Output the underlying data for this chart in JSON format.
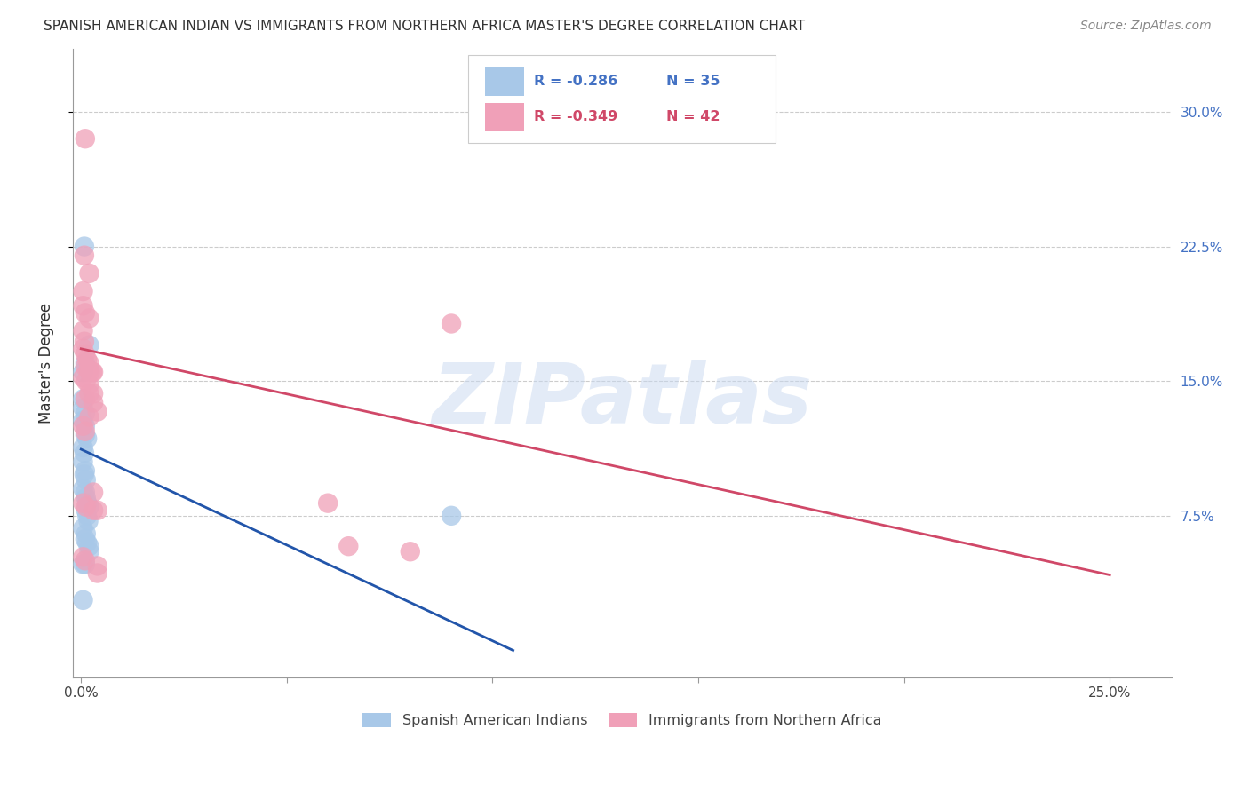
{
  "title": "SPANISH AMERICAN INDIAN VS IMMIGRANTS FROM NORTHERN AFRICA MASTER'S DEGREE CORRELATION CHART",
  "source": "Source: ZipAtlas.com",
  "ylabel": "Master's Degree",
  "legend_blue_r": "R = -0.286",
  "legend_blue_n": "N = 35",
  "legend_pink_r": "R = -0.349",
  "legend_pink_n": "N = 42",
  "legend1_label": "Spanish American Indians",
  "legend2_label": "Immigrants from Northern Africa",
  "watermark": "ZIPatlas",
  "blue_color": "#a8c8e8",
  "blue_line_color": "#2255aa",
  "pink_color": "#f0a0b8",
  "pink_line_color": "#d04868",
  "blue_scatter": [
    [
      0.0008,
      0.225
    ],
    [
      0.002,
      0.17
    ],
    [
      0.001,
      0.16
    ],
    [
      0.0005,
      0.155
    ],
    [
      0.0005,
      0.14
    ],
    [
      0.0005,
      0.135
    ],
    [
      0.001,
      0.132
    ],
    [
      0.0005,
      0.128
    ],
    [
      0.001,
      0.125
    ],
    [
      0.001,
      0.12
    ],
    [
      0.0015,
      0.118
    ],
    [
      0.0005,
      0.113
    ],
    [
      0.0008,
      0.11
    ],
    [
      0.0005,
      0.105
    ],
    [
      0.001,
      0.1
    ],
    [
      0.0008,
      0.098
    ],
    [
      0.0012,
      0.095
    ],
    [
      0.0005,
      0.09
    ],
    [
      0.001,
      0.088
    ],
    [
      0.0012,
      0.085
    ],
    [
      0.0015,
      0.082
    ],
    [
      0.002,
      0.08
    ],
    [
      0.0012,
      0.078
    ],
    [
      0.0015,
      0.075
    ],
    [
      0.0018,
      0.072
    ],
    [
      0.0005,
      0.068
    ],
    [
      0.0012,
      0.065
    ],
    [
      0.001,
      0.062
    ],
    [
      0.0015,
      0.06
    ],
    [
      0.002,
      0.058
    ],
    [
      0.002,
      0.055
    ],
    [
      0.0005,
      0.048
    ],
    [
      0.001,
      0.048
    ],
    [
      0.0005,
      0.028
    ],
    [
      0.09,
      0.075
    ]
  ],
  "pink_scatter": [
    [
      0.001,
      0.285
    ],
    [
      0.0008,
      0.22
    ],
    [
      0.002,
      0.21
    ],
    [
      0.0005,
      0.2
    ],
    [
      0.0005,
      0.192
    ],
    [
      0.001,
      0.188
    ],
    [
      0.002,
      0.185
    ],
    [
      0.0005,
      0.178
    ],
    [
      0.0008,
      0.172
    ],
    [
      0.0005,
      0.168
    ],
    [
      0.001,
      0.165
    ],
    [
      0.0015,
      0.162
    ],
    [
      0.002,
      0.16
    ],
    [
      0.001,
      0.158
    ],
    [
      0.0018,
      0.156
    ],
    [
      0.0022,
      0.155
    ],
    [
      0.003,
      0.155
    ],
    [
      0.0005,
      0.152
    ],
    [
      0.0012,
      0.15
    ],
    [
      0.002,
      0.148
    ],
    [
      0.0028,
      0.155
    ],
    [
      0.002,
      0.143
    ],
    [
      0.001,
      0.14
    ],
    [
      0.002,
      0.13
    ],
    [
      0.003,
      0.143
    ],
    [
      0.003,
      0.138
    ],
    [
      0.004,
      0.133
    ],
    [
      0.0005,
      0.125
    ],
    [
      0.001,
      0.122
    ],
    [
      0.003,
      0.088
    ],
    [
      0.0005,
      0.082
    ],
    [
      0.0012,
      0.08
    ],
    [
      0.003,
      0.078
    ],
    [
      0.004,
      0.078
    ],
    [
      0.09,
      0.182
    ],
    [
      0.06,
      0.082
    ],
    [
      0.0005,
      0.052
    ],
    [
      0.001,
      0.05
    ],
    [
      0.004,
      0.047
    ],
    [
      0.004,
      0.043
    ],
    [
      0.065,
      0.058
    ],
    [
      0.08,
      0.055
    ]
  ],
  "blue_line_x": [
    0.0,
    0.105
  ],
  "blue_line_y": [
    0.112,
    0.0
  ],
  "pink_line_x": [
    0.0,
    0.25
  ],
  "pink_line_y": [
    0.168,
    0.042
  ],
  "xlim": [
    -0.002,
    0.265
  ],
  "ylim": [
    -0.015,
    0.335
  ],
  "xtick_positions": [
    0.0,
    0.05,
    0.1,
    0.15,
    0.2,
    0.25
  ],
  "ytick_positions": [
    0.075,
    0.15,
    0.225,
    0.3
  ],
  "ytick_labels": [
    "7.5%",
    "15.0%",
    "22.5%",
    "30.0%"
  ]
}
